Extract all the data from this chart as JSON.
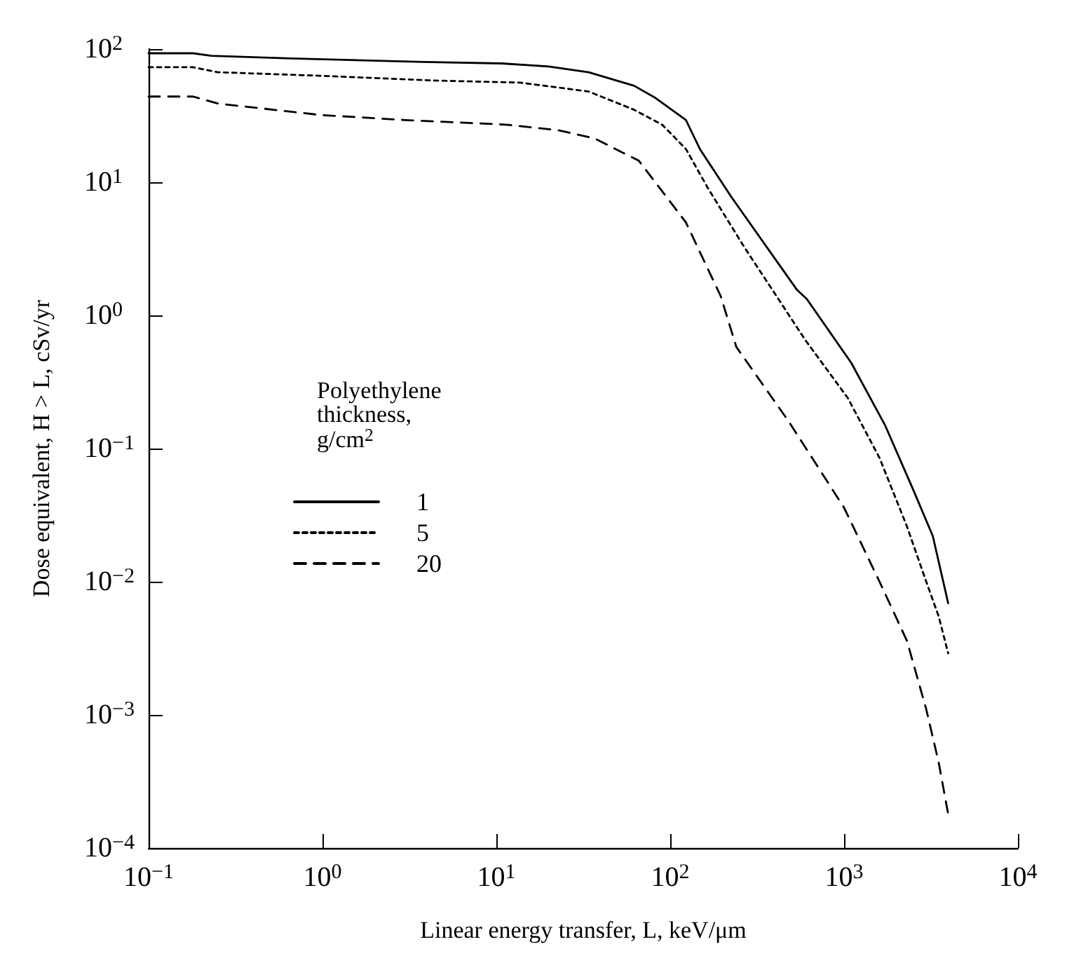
{
  "chart_data": {
    "type": "line",
    "xlabel": "Linear energy transfer, L, keV/μm",
    "ylabel": "Dose equivalent, H > L, cSv/yr",
    "legend_title": "Polyethylene thickness, g/cm$^{2}$",
    "log": "xy",
    "grid": false,
    "legend": "center left",
    "xlim": [
      0.1,
      10000
    ],
    "ylim": [
      0.0001,
      100
    ],
    "xticks": [
      {
        "value": 0.1,
        "label": "10$^{−1}$"
      },
      {
        "value": 1,
        "label": "10$^{0}$"
      },
      {
        "value": 10,
        "label": "10$^{1}$"
      },
      {
        "value": 100,
        "label": "10$^{2}$"
      },
      {
        "value": 1000,
        "label": "10$^{3}$"
      },
      {
        "value": 10000,
        "label": "10$^{4}$"
      }
    ],
    "yticks": [
      {
        "value": 0.0001,
        "label": "10$^{−4}$"
      },
      {
        "value": 0.001,
        "label": "10$^{−3}$"
      },
      {
        "value": 0.01,
        "label": "10$^{−2}$"
      },
      {
        "value": 0.1,
        "label": "10$^{−1}$"
      },
      {
        "value": 1,
        "label": "10$^{0}$"
      },
      {
        "value": 10,
        "label": "10$^{1}$"
      },
      {
        "value": 100,
        "label": "10$^{2}$"
      }
    ],
    "series": [
      {
        "name": "1",
        "color": "#000000",
        "line_style": "solid",
        "x": [
          0.1,
          0.18,
          0.23,
          0.66,
          3.8,
          10.7,
          20,
          34,
          62,
          81,
          123,
          148,
          224,
          537,
          610,
          1100,
          1720,
          2500,
          3240,
          3970
        ],
        "values": [
          93,
          93,
          89,
          85,
          80,
          78,
          74,
          67,
          53,
          43.5,
          29.4,
          17.8,
          7.8,
          1.55,
          1.33,
          0.44,
          0.15,
          0.049,
          0.022,
          0.0069
        ]
      },
      {
        "name": "5",
        "color": "#000000",
        "line_style": "dotted",
        "x": [
          0.1,
          0.18,
          0.25,
          0.97,
          4.4,
          13.7,
          34,
          62,
          90,
          123,
          165,
          265,
          600,
          1050,
          1600,
          2300,
          2970,
          3500,
          3970
        ],
        "values": [
          73,
          73,
          67,
          63,
          58,
          56,
          48,
          35,
          27,
          17.8,
          9,
          3.3,
          0.65,
          0.24,
          0.085,
          0.026,
          0.01,
          0.0055,
          0.0029
        ]
      },
      {
        "name": "20",
        "color": "#000000",
        "line_style": "dashed",
        "x": [
          0.1,
          0.18,
          0.25,
          0.97,
          3,
          11.7,
          23,
          36.5,
          66,
          123,
          195,
          240,
          480,
          1000,
          1600,
          2300,
          2970,
          3500,
          3970
        ],
        "values": [
          44,
          44,
          39,
          32,
          29.3,
          27,
          24.5,
          21.4,
          14.5,
          5,
          1.4,
          0.58,
          0.16,
          0.036,
          0.01,
          0.0036,
          0.0011,
          0.00044,
          0.00018
        ]
      }
    ]
  }
}
